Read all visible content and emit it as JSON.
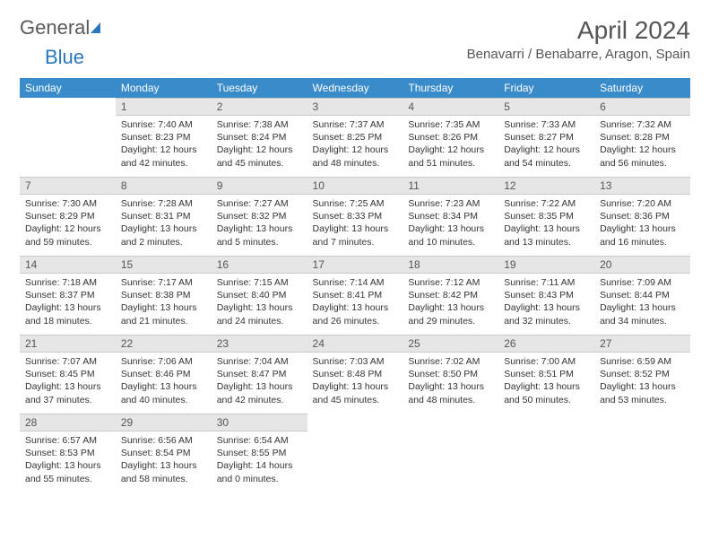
{
  "colors": {
    "brand_blue": "#2b77bb",
    "header_blue": "#3a8bc9",
    "daynum_bg": "#e6e6e6",
    "text": "#333333",
    "muted": "#555555",
    "border": "#c9c9c9"
  },
  "logo": {
    "part1": "Genera",
    "part2": "l",
    "part3": "Blue"
  },
  "title": "April 2024",
  "location": "Benavarri / Benabarre, Aragon, Spain",
  "day_headers": [
    "Sunday",
    "Monday",
    "Tuesday",
    "Wednesday",
    "Thursday",
    "Friday",
    "Saturday"
  ],
  "weeks": [
    [
      null,
      {
        "n": "1",
        "sr": "7:40 AM",
        "ss": "8:23 PM",
        "dl": "12 hours and 42 minutes."
      },
      {
        "n": "2",
        "sr": "7:38 AM",
        "ss": "8:24 PM",
        "dl": "12 hours and 45 minutes."
      },
      {
        "n": "3",
        "sr": "7:37 AM",
        "ss": "8:25 PM",
        "dl": "12 hours and 48 minutes."
      },
      {
        "n": "4",
        "sr": "7:35 AM",
        "ss": "8:26 PM",
        "dl": "12 hours and 51 minutes."
      },
      {
        "n": "5",
        "sr": "7:33 AM",
        "ss": "8:27 PM",
        "dl": "12 hours and 54 minutes."
      },
      {
        "n": "6",
        "sr": "7:32 AM",
        "ss": "8:28 PM",
        "dl": "12 hours and 56 minutes."
      }
    ],
    [
      {
        "n": "7",
        "sr": "7:30 AM",
        "ss": "8:29 PM",
        "dl": "12 hours and 59 minutes."
      },
      {
        "n": "8",
        "sr": "7:28 AM",
        "ss": "8:31 PM",
        "dl": "13 hours and 2 minutes."
      },
      {
        "n": "9",
        "sr": "7:27 AM",
        "ss": "8:32 PM",
        "dl": "13 hours and 5 minutes."
      },
      {
        "n": "10",
        "sr": "7:25 AM",
        "ss": "8:33 PM",
        "dl": "13 hours and 7 minutes."
      },
      {
        "n": "11",
        "sr": "7:23 AM",
        "ss": "8:34 PM",
        "dl": "13 hours and 10 minutes."
      },
      {
        "n": "12",
        "sr": "7:22 AM",
        "ss": "8:35 PM",
        "dl": "13 hours and 13 minutes."
      },
      {
        "n": "13",
        "sr": "7:20 AM",
        "ss": "8:36 PM",
        "dl": "13 hours and 16 minutes."
      }
    ],
    [
      {
        "n": "14",
        "sr": "7:18 AM",
        "ss": "8:37 PM",
        "dl": "13 hours and 18 minutes."
      },
      {
        "n": "15",
        "sr": "7:17 AM",
        "ss": "8:38 PM",
        "dl": "13 hours and 21 minutes."
      },
      {
        "n": "16",
        "sr": "7:15 AM",
        "ss": "8:40 PM",
        "dl": "13 hours and 24 minutes."
      },
      {
        "n": "17",
        "sr": "7:14 AM",
        "ss": "8:41 PM",
        "dl": "13 hours and 26 minutes."
      },
      {
        "n": "18",
        "sr": "7:12 AM",
        "ss": "8:42 PM",
        "dl": "13 hours and 29 minutes."
      },
      {
        "n": "19",
        "sr": "7:11 AM",
        "ss": "8:43 PM",
        "dl": "13 hours and 32 minutes."
      },
      {
        "n": "20",
        "sr": "7:09 AM",
        "ss": "8:44 PM",
        "dl": "13 hours and 34 minutes."
      }
    ],
    [
      {
        "n": "21",
        "sr": "7:07 AM",
        "ss": "8:45 PM",
        "dl": "13 hours and 37 minutes."
      },
      {
        "n": "22",
        "sr": "7:06 AM",
        "ss": "8:46 PM",
        "dl": "13 hours and 40 minutes."
      },
      {
        "n": "23",
        "sr": "7:04 AM",
        "ss": "8:47 PM",
        "dl": "13 hours and 42 minutes."
      },
      {
        "n": "24",
        "sr": "7:03 AM",
        "ss": "8:48 PM",
        "dl": "13 hours and 45 minutes."
      },
      {
        "n": "25",
        "sr": "7:02 AM",
        "ss": "8:50 PM",
        "dl": "13 hours and 48 minutes."
      },
      {
        "n": "26",
        "sr": "7:00 AM",
        "ss": "8:51 PM",
        "dl": "13 hours and 50 minutes."
      },
      {
        "n": "27",
        "sr": "6:59 AM",
        "ss": "8:52 PM",
        "dl": "13 hours and 53 minutes."
      }
    ],
    [
      {
        "n": "28",
        "sr": "6:57 AM",
        "ss": "8:53 PM",
        "dl": "13 hours and 55 minutes."
      },
      {
        "n": "29",
        "sr": "6:56 AM",
        "ss": "8:54 PM",
        "dl": "13 hours and 58 minutes."
      },
      {
        "n": "30",
        "sr": "6:54 AM",
        "ss": "8:55 PM",
        "dl": "14 hours and 0 minutes."
      },
      null,
      null,
      null,
      null
    ]
  ],
  "labels": {
    "sunrise": "Sunrise: ",
    "sunset": "Sunset: ",
    "daylight": "Daylight: "
  }
}
